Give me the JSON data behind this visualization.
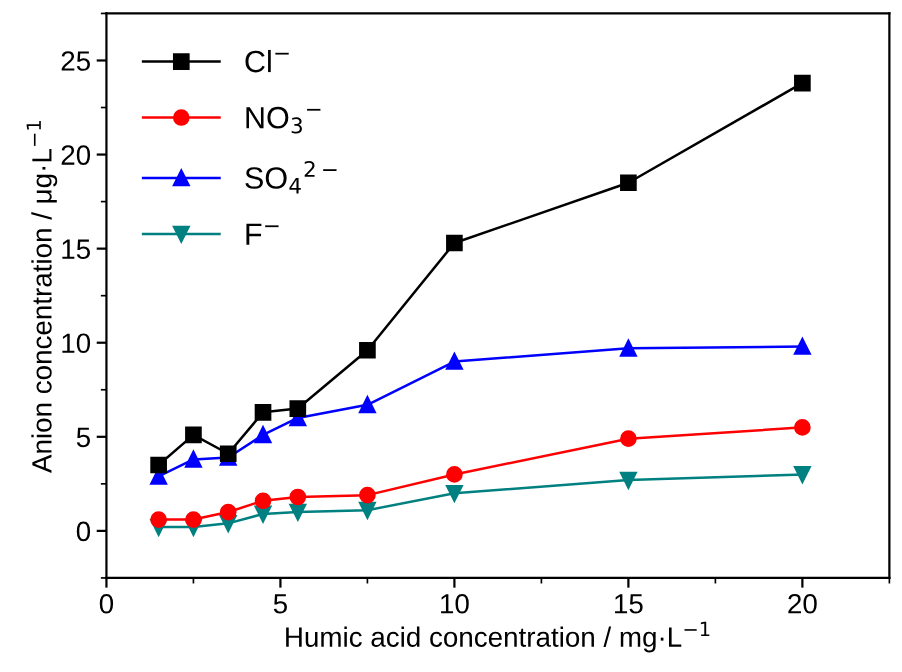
{
  "chart_data": {
    "type": "line",
    "xlabel": "Humic acid concentration / mg·L$^{−1}$",
    "ylabel": "Anion concentration / μg·L$^{−1}$",
    "x": [
      1.5,
      2.5,
      3.5,
      4.5,
      5.5,
      7.5,
      10,
      15,
      20
    ],
    "series": [
      {
        "name": "Cl$^{−}$",
        "color": "#000000",
        "marker": "square",
        "values": [
          3.5,
          5.1,
          4.1,
          6.3,
          6.5,
          9.6,
          15.3,
          18.5,
          23.8
        ]
      },
      {
        "name": "NO$_{3}$$^{−}$",
        "color": "#ff0000",
        "marker": "circle",
        "values": [
          0.6,
          0.6,
          1.0,
          1.6,
          1.8,
          1.9,
          3.0,
          4.9,
          5.5
        ]
      },
      {
        "name": "SO$_{4}$$^{2−}$",
        "color": "#0000ff",
        "marker": "triangle",
        "values": [
          2.9,
          3.8,
          3.9,
          5.1,
          6.0,
          6.7,
          9.0,
          9.7,
          9.8
        ]
      },
      {
        "name": "F$^{−}$",
        "color": "#008080",
        "marker": "triangle_down",
        "values": [
          0.2,
          0.2,
          0.4,
          0.9,
          1.0,
          1.1,
          2.0,
          2.7,
          3.0
        ]
      }
    ],
    "xlim": [
      0,
      22.5
    ],
    "xticks": [
      0,
      5,
      10,
      15,
      20
    ],
    "ylim": [
      -2.5,
      27.5
    ],
    "yticks": [
      0,
      5,
      10,
      15,
      20,
      25
    ],
    "grid": false,
    "legend": "top left",
    "line_style": "solid"
  }
}
